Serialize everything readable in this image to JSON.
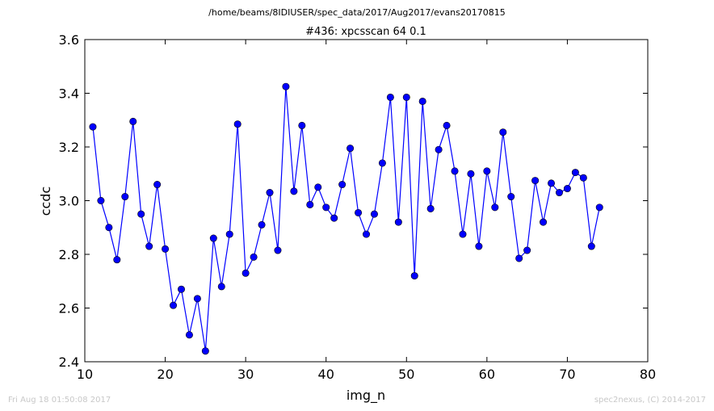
{
  "figure": {
    "suptitle": "/home/beams/8IDIUSER/spec_data/2017/Aug2017/evans20170815",
    "footer_left": "Fri Aug 18 01:50:08 2017",
    "footer_right": "spec2nexus, (C) 2014-2017"
  },
  "chart_data": {
    "type": "line",
    "title": "#436: xpcsscan 64 0.1",
    "xlabel": "img_n",
    "ylabel": "ccdc",
    "xlim": [
      10,
      80
    ],
    "ylim": [
      2.4,
      3.6
    ],
    "xticks": [
      "10",
      "20",
      "30",
      "40",
      "50",
      "60",
      "70",
      "80"
    ],
    "yticks": [
      "2.4",
      "2.6",
      "2.8",
      "3.0",
      "3.2",
      "3.4",
      "3.6"
    ],
    "grid": false,
    "series": [
      {
        "color": "#0000ff",
        "marker": "circle",
        "x": [
          11,
          12,
          13,
          14,
          15,
          16,
          17,
          18,
          19,
          20,
          21,
          22,
          23,
          24,
          25,
          26,
          27,
          28,
          29,
          30,
          31,
          32,
          33,
          34,
          35,
          36,
          37,
          38,
          39,
          40,
          41,
          42,
          43,
          44,
          45,
          46,
          47,
          48,
          49,
          50,
          51,
          52,
          53,
          54,
          55,
          56,
          57,
          58,
          59,
          60,
          61,
          62,
          63,
          64,
          65,
          66,
          67,
          68,
          69,
          70,
          71,
          72,
          73,
          74
        ],
        "y": [
          3.275,
          3.0,
          2.9,
          2.78,
          3.015,
          3.295,
          2.95,
          2.83,
          3.06,
          2.82,
          2.61,
          2.67,
          2.5,
          2.635,
          2.44,
          2.86,
          2.68,
          2.875,
          3.285,
          2.73,
          2.79,
          2.91,
          3.03,
          2.815,
          3.425,
          3.035,
          3.28,
          2.985,
          3.05,
          2.975,
          2.935,
          3.06,
          3.195,
          2.955,
          2.875,
          2.95,
          3.14,
          3.385,
          2.92,
          3.385,
          2.72,
          3.37,
          2.97,
          3.19,
          3.28,
          3.11,
          2.875,
          3.1,
          2.83,
          3.11,
          2.975,
          3.255,
          3.015,
          2.785,
          2.815,
          3.075,
          2.92,
          3.065,
          3.03,
          3.045,
          3.105,
          3.085,
          2.83,
          2.975
        ]
      }
    ]
  }
}
